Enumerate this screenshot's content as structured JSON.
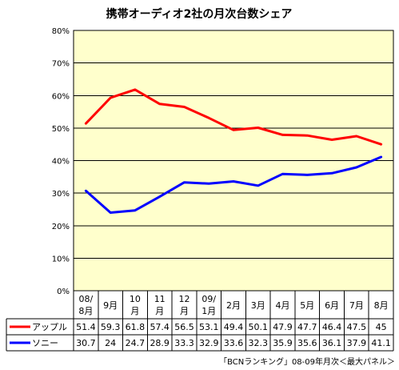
{
  "chart_data": {
    "type": "line",
    "title": "携帯オーディオ2社の月次台数シェア",
    "source_note": "「BCNランキング」08-09年月次＜最大パネル＞",
    "y_ticks": [
      "0%",
      "10%",
      "20%",
      "30%",
      "40%",
      "50%",
      "60%",
      "70%",
      "80%"
    ],
    "ylim": [
      0,
      80
    ],
    "grid": true,
    "categories": [
      [
        "08/",
        "8月"
      ],
      [
        "9月"
      ],
      [
        "10",
        "月"
      ],
      [
        "11",
        "月"
      ],
      [
        "12",
        "月"
      ],
      [
        "09/",
        "1月"
      ],
      [
        "2月"
      ],
      [
        "3月"
      ],
      [
        "4月"
      ],
      [
        "5月"
      ],
      [
        "6月"
      ],
      [
        "7月"
      ],
      [
        "8月"
      ]
    ],
    "series": [
      {
        "name": "アップル",
        "color": "#ff0000",
        "values": [
          51.4,
          59.3,
          61.8,
          57.4,
          56.5,
          53.1,
          49.4,
          50.1,
          47.9,
          47.7,
          46.4,
          47.5,
          45
        ],
        "labels": [
          "51.4",
          "59.3",
          "61.8",
          "57.4",
          "56.5",
          "53.1",
          "49.4",
          "50.1",
          "47.9",
          "47.7",
          "46.4",
          "47.5",
          "45"
        ]
      },
      {
        "name": "ソニー",
        "color": "#0000ff",
        "values": [
          30.7,
          24,
          24.7,
          28.9,
          33.3,
          32.9,
          33.6,
          32.3,
          35.9,
          35.6,
          36.1,
          37.9,
          41.1
        ],
        "labels": [
          "30.7",
          "24",
          "24.7",
          "28.9",
          "33.3",
          "32.9",
          "33.6",
          "32.3",
          "35.9",
          "35.6",
          "36.1",
          "37.9",
          "41.1"
        ]
      }
    ]
  }
}
